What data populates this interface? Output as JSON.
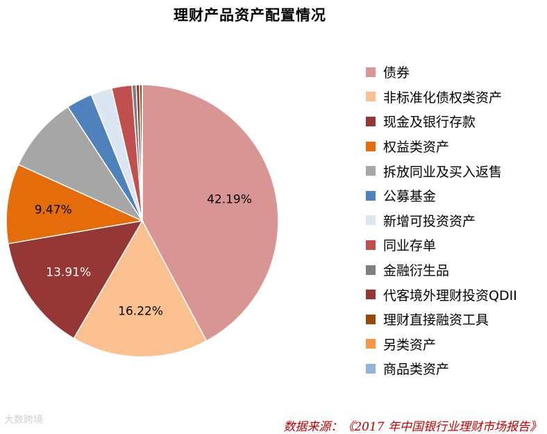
{
  "chart_data": {
    "type": "pie",
    "title": "理财产品资产配置情况",
    "slices": [
      {
        "label": "债券",
        "value": 42.19,
        "value_label": "42.19%",
        "color": "#d99594"
      },
      {
        "label": "非标准化债权类资产",
        "value": 16.22,
        "value_label": "16.22%",
        "color": "#fac090"
      },
      {
        "label": "现金及银行存款",
        "value": 13.91,
        "value_label": "13.91%",
        "color": "#953735"
      },
      {
        "label": "权益类资产",
        "value": 9.47,
        "value_label": "9.47%",
        "color": "#e46c0a"
      },
      {
        "label": "拆放同业及买入返售",
        "value": 9.0,
        "value_label": "",
        "color": "#a6a6a6"
      },
      {
        "label": "公募基金",
        "value": 3.1,
        "value_label": "",
        "color": "#4f81bd"
      },
      {
        "label": "新增可投资资产",
        "value": 2.5,
        "value_label": "",
        "color": "#dce6f2"
      },
      {
        "label": "同业存单",
        "value": 2.4,
        "value_label": "",
        "color": "#c0504d"
      },
      {
        "label": "金融衍生品",
        "value": 0.5,
        "value_label": "",
        "color": "#7f7f7f"
      },
      {
        "label": "代客境外理财投资QDII",
        "value": 0.4,
        "value_label": "",
        "color": "#953735"
      },
      {
        "label": "理财直接融资工具",
        "value": 0.3,
        "value_label": "",
        "color": "#984807"
      },
      {
        "label": "另类资产",
        "value": 0.01,
        "value_label": "",
        "color": "#f79646"
      },
      {
        "label": "商品类资产",
        "value": 0.01,
        "value_label": "",
        "color": "#95b3d7"
      }
    ],
    "legend_position": "right"
  },
  "watermark": "大数跨境",
  "source": "数据来源：《2017 年中国银行业理财市场报告》"
}
